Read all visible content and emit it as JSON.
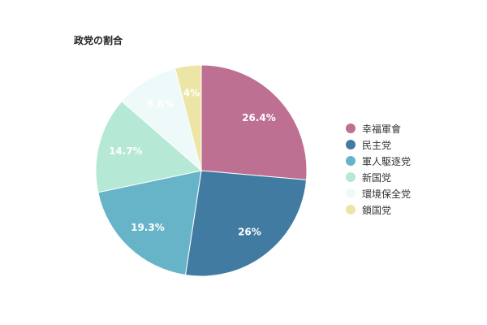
{
  "chart_data": {
    "type": "pie",
    "title": "政党の割合",
    "legend_position": "right",
    "slices": [
      {
        "label": "幸福軍會",
        "value": 26.4,
        "value_label": "26.4%",
        "color": "#be7093"
      },
      {
        "label": "民主党",
        "value": 26,
        "value_label": "26%",
        "color": "#427ba1"
      },
      {
        "label": "軍人駆逐党",
        "value": 19.3,
        "value_label": "19.3%",
        "color": "#67b4c9"
      },
      {
        "label": "新国党",
        "value": 14.7,
        "value_label": "14.7%",
        "color": "#b5e8d5"
      },
      {
        "label": "環境保全党",
        "value": 9.6,
        "value_label": "9.6%",
        "color": "#eef9f9"
      },
      {
        "label": "鎖国党",
        "value": 4,
        "value_label": "4%",
        "color": "#ede5a5"
      }
    ]
  }
}
